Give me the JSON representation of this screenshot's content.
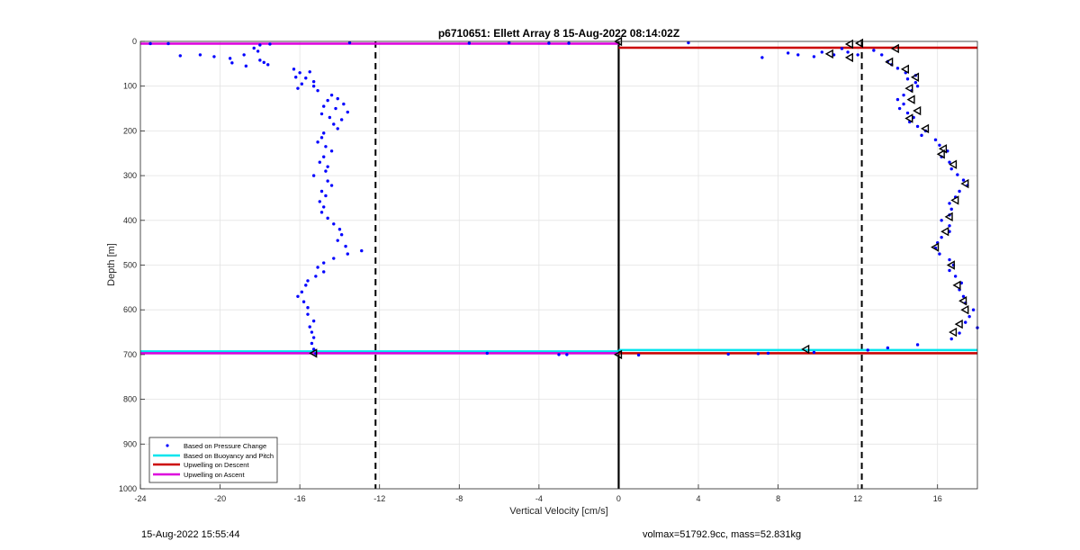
{
  "footer": {
    "timestamp": "15-Aug-2022 15:55:44",
    "summary": "volmax=51792.9cc, mass=52.831kg"
  },
  "chart_data": {
    "type": "scatter",
    "title": "p6710651: Ellett Array 8 15-Aug-2022 08:14:02Z",
    "xlabel": "Vertical Velocity [cm/s]",
    "ylabel": "Depth [m]",
    "xlim": [
      -24,
      18
    ],
    "ylim": [
      0,
      1000
    ],
    "y_reversed": true,
    "grid": true,
    "x_ticks": [
      -24,
      -20,
      -16,
      -12,
      -8,
      -4,
      0,
      4,
      8,
      12,
      16
    ],
    "y_ticks": [
      0,
      100,
      200,
      300,
      400,
      500,
      600,
      700,
      800,
      900,
      1000
    ],
    "legend_position": "bottom-left",
    "colors": {
      "pressure": "#0000ff",
      "buoyancy": "#00e5ee",
      "descent": "#cc0000",
      "ascent": "#dd00dd"
    },
    "vertical_lines": [
      {
        "x": -12.2,
        "style": "dashed",
        "color": "#000000"
      },
      {
        "x": 0,
        "style": "solid",
        "color": "#000000"
      },
      {
        "x": 12.2,
        "style": "dashed",
        "color": "#000000"
      }
    ],
    "series": [
      {
        "name": "Based on Pressure Change",
        "marker": "dot",
        "points": [
          [
            -23.5,
            5
          ],
          [
            -22.6,
            5
          ],
          [
            -18,
            8
          ],
          [
            -17.5,
            6
          ],
          [
            -13.5,
            3
          ],
          [
            -7.5,
            4
          ],
          [
            -5.5,
            3
          ],
          [
            -3.5,
            4
          ],
          [
            -2.5,
            4
          ],
          [
            3.5,
            3
          ],
          [
            -22,
            32
          ],
          [
            -21,
            30
          ],
          [
            -20.3,
            34
          ],
          [
            -19.5,
            38
          ],
          [
            -18.8,
            30
          ],
          [
            -18.3,
            15
          ],
          [
            -18,
            42
          ],
          [
            -19.4,
            48
          ],
          [
            -18.7,
            55
          ],
          [
            -17.6,
            52
          ],
          [
            -18.1,
            22
          ],
          [
            -17.8,
            47
          ],
          [
            -16.3,
            62
          ],
          [
            -16,
            70
          ],
          [
            -15.5,
            68
          ],
          [
            -16.2,
            80
          ],
          [
            -15.7,
            82
          ],
          [
            -15.3,
            90
          ],
          [
            -15.9,
            95
          ],
          [
            -16.1,
            105
          ],
          [
            -15.3,
            100
          ],
          [
            -15.1,
            110
          ],
          [
            -14.4,
            120
          ],
          [
            -14.1,
            128
          ],
          [
            -14.6,
            132
          ],
          [
            -13.8,
            140
          ],
          [
            -14.8,
            145
          ],
          [
            -14.2,
            150
          ],
          [
            -13.6,
            158
          ],
          [
            -14.9,
            162
          ],
          [
            -14.5,
            170
          ],
          [
            -13.9,
            175
          ],
          [
            -14.3,
            185
          ],
          [
            -14.1,
            195
          ],
          [
            -14.8,
            205
          ],
          [
            -14.9,
            215
          ],
          [
            -15.1,
            225
          ],
          [
            -14.7,
            235
          ],
          [
            -14.4,
            245
          ],
          [
            -14.8,
            258
          ],
          [
            -15.0,
            270
          ],
          [
            -14.6,
            280
          ],
          [
            -14.7,
            290
          ],
          [
            -15.3,
            300
          ],
          [
            -14.6,
            312
          ],
          [
            -14.4,
            322
          ],
          [
            -14.9,
            335
          ],
          [
            -14.7,
            345
          ],
          [
            -15.0,
            358
          ],
          [
            -14.8,
            370
          ],
          [
            -14.9,
            382
          ],
          [
            -14.6,
            395
          ],
          [
            -14.3,
            408
          ],
          [
            -14.0,
            420
          ],
          [
            -13.9,
            432
          ],
          [
            -14.1,
            445
          ],
          [
            -13.7,
            458
          ],
          [
            -12.9,
            468
          ],
          [
            -13.6,
            475
          ],
          [
            -14.3,
            485
          ],
          [
            -14.8,
            495
          ],
          [
            -15.1,
            505
          ],
          [
            -14.8,
            515
          ],
          [
            -15.2,
            525
          ],
          [
            -15.6,
            535
          ],
          [
            -15.7,
            545
          ],
          [
            -15.9,
            560
          ],
          [
            -16.1,
            570
          ],
          [
            -15.8,
            582
          ],
          [
            -15.6,
            595
          ],
          [
            -15.6,
            610
          ],
          [
            -15.3,
            625
          ],
          [
            -15.5,
            638
          ],
          [
            -15.4,
            650
          ],
          [
            -15.3,
            662
          ],
          [
            -15.4,
            675
          ],
          [
            -15.3,
            688
          ],
          [
            -15.2,
            698
          ],
          [
            -6.6,
            697
          ],
          [
            -3,
            700
          ],
          [
            -2.6,
            700
          ],
          [
            1,
            701
          ],
          [
            5.5,
            699
          ],
          [
            7,
            698
          ],
          [
            7.5,
            697
          ],
          [
            7.2,
            36
          ],
          [
            8.5,
            26
          ],
          [
            9,
            30
          ],
          [
            9.8,
            34
          ],
          [
            10.2,
            24
          ],
          [
            10.8,
            30
          ],
          [
            11.2,
            16
          ],
          [
            11.5,
            24
          ],
          [
            12,
            30
          ],
          [
            12.8,
            20
          ],
          [
            13.2,
            30
          ],
          [
            13.5,
            45
          ],
          [
            13.7,
            52
          ],
          [
            14.0,
            60
          ],
          [
            14.4,
            70
          ],
          [
            14.9,
            76
          ],
          [
            14.5,
            84
          ],
          [
            14.9,
            92
          ],
          [
            15.0,
            100
          ],
          [
            14.7,
            110
          ],
          [
            14.3,
            120
          ],
          [
            14.0,
            130
          ],
          [
            14.3,
            140
          ],
          [
            14.1,
            150
          ],
          [
            14.5,
            160
          ],
          [
            14.8,
            170
          ],
          [
            14.6,
            180
          ],
          [
            15.0,
            190
          ],
          [
            15.4,
            200
          ],
          [
            15.2,
            210
          ],
          [
            15.9,
            220
          ],
          [
            16.1,
            232
          ],
          [
            16.5,
            245
          ],
          [
            16.2,
            258
          ],
          [
            16.6,
            270
          ],
          [
            16.7,
            285
          ],
          [
            17.0,
            298
          ],
          [
            17.3,
            310
          ],
          [
            17.5,
            322
          ],
          [
            17.1,
            335
          ],
          [
            16.9,
            348
          ],
          [
            16.6,
            362
          ],
          [
            16.7,
            375
          ],
          [
            16.6,
            388
          ],
          [
            16.2,
            400
          ],
          [
            16.6,
            412
          ],
          [
            16.6,
            425
          ],
          [
            16.2,
            438
          ],
          [
            16.0,
            450
          ],
          [
            15.9,
            462
          ],
          [
            16.1,
            475
          ],
          [
            16.6,
            488
          ],
          [
            16.8,
            500
          ],
          [
            16.6,
            512
          ],
          [
            16.9,
            525
          ],
          [
            17.2,
            540
          ],
          [
            17.1,
            555
          ],
          [
            17.3,
            570
          ],
          [
            17.4,
            585
          ],
          [
            17.8,
            600
          ],
          [
            17.6,
            615
          ],
          [
            17.4,
            628
          ],
          [
            18.0,
            640
          ],
          [
            17.1,
            652
          ],
          [
            16.7,
            665
          ],
          [
            15.0,
            678
          ],
          [
            13.5,
            685
          ],
          [
            12.5,
            690
          ],
          [
            9.8,
            695
          ]
        ]
      },
      {
        "name": "Based on Buoyancy and Pitch",
        "marker": "line",
        "segments": [
          {
            "x1": -24,
            "x2": 0,
            "y": 693
          },
          {
            "x1": 0,
            "x2": 18,
            "y": 690
          }
        ]
      },
      {
        "name": "Upwelling on Descent",
        "marker": "line",
        "segments": [
          {
            "x1": 0,
            "x2": 18,
            "y": 14
          },
          {
            "x1": 0,
            "x2": 18,
            "y": 697
          }
        ]
      },
      {
        "name": "Upwelling on Ascent",
        "marker": "line",
        "segments": [
          {
            "x1": -24,
            "x2": 0,
            "y": 5
          },
          {
            "x1": -24,
            "x2": 0,
            "y": 697
          }
        ]
      }
    ],
    "triangle_markers": [
      [
        0,
        0
      ],
      [
        0,
        700
      ],
      [
        -15.3,
        697
      ],
      [
        9.4,
        688
      ],
      [
        11.6,
        6
      ],
      [
        12.1,
        4
      ],
      [
        10.6,
        28
      ],
      [
        11.6,
        36
      ],
      [
        13.9,
        16
      ],
      [
        13.6,
        46
      ],
      [
        14.4,
        62
      ],
      [
        14.9,
        80
      ],
      [
        14.6,
        105
      ],
      [
        14.7,
        130
      ],
      [
        15.0,
        155
      ],
      [
        14.6,
        172
      ],
      [
        15.4,
        195
      ],
      [
        16.3,
        240
      ],
      [
        16.2,
        252
      ],
      [
        16.8,
        275
      ],
      [
        17.4,
        318
      ],
      [
        16.9,
        355
      ],
      [
        16.6,
        392
      ],
      [
        16.4,
        425
      ],
      [
        15.9,
        460
      ],
      [
        16.7,
        500
      ],
      [
        17.0,
        545
      ],
      [
        17.3,
        580
      ],
      [
        17.4,
        600
      ],
      [
        17.1,
        632
      ],
      [
        16.8,
        650
      ]
    ]
  }
}
